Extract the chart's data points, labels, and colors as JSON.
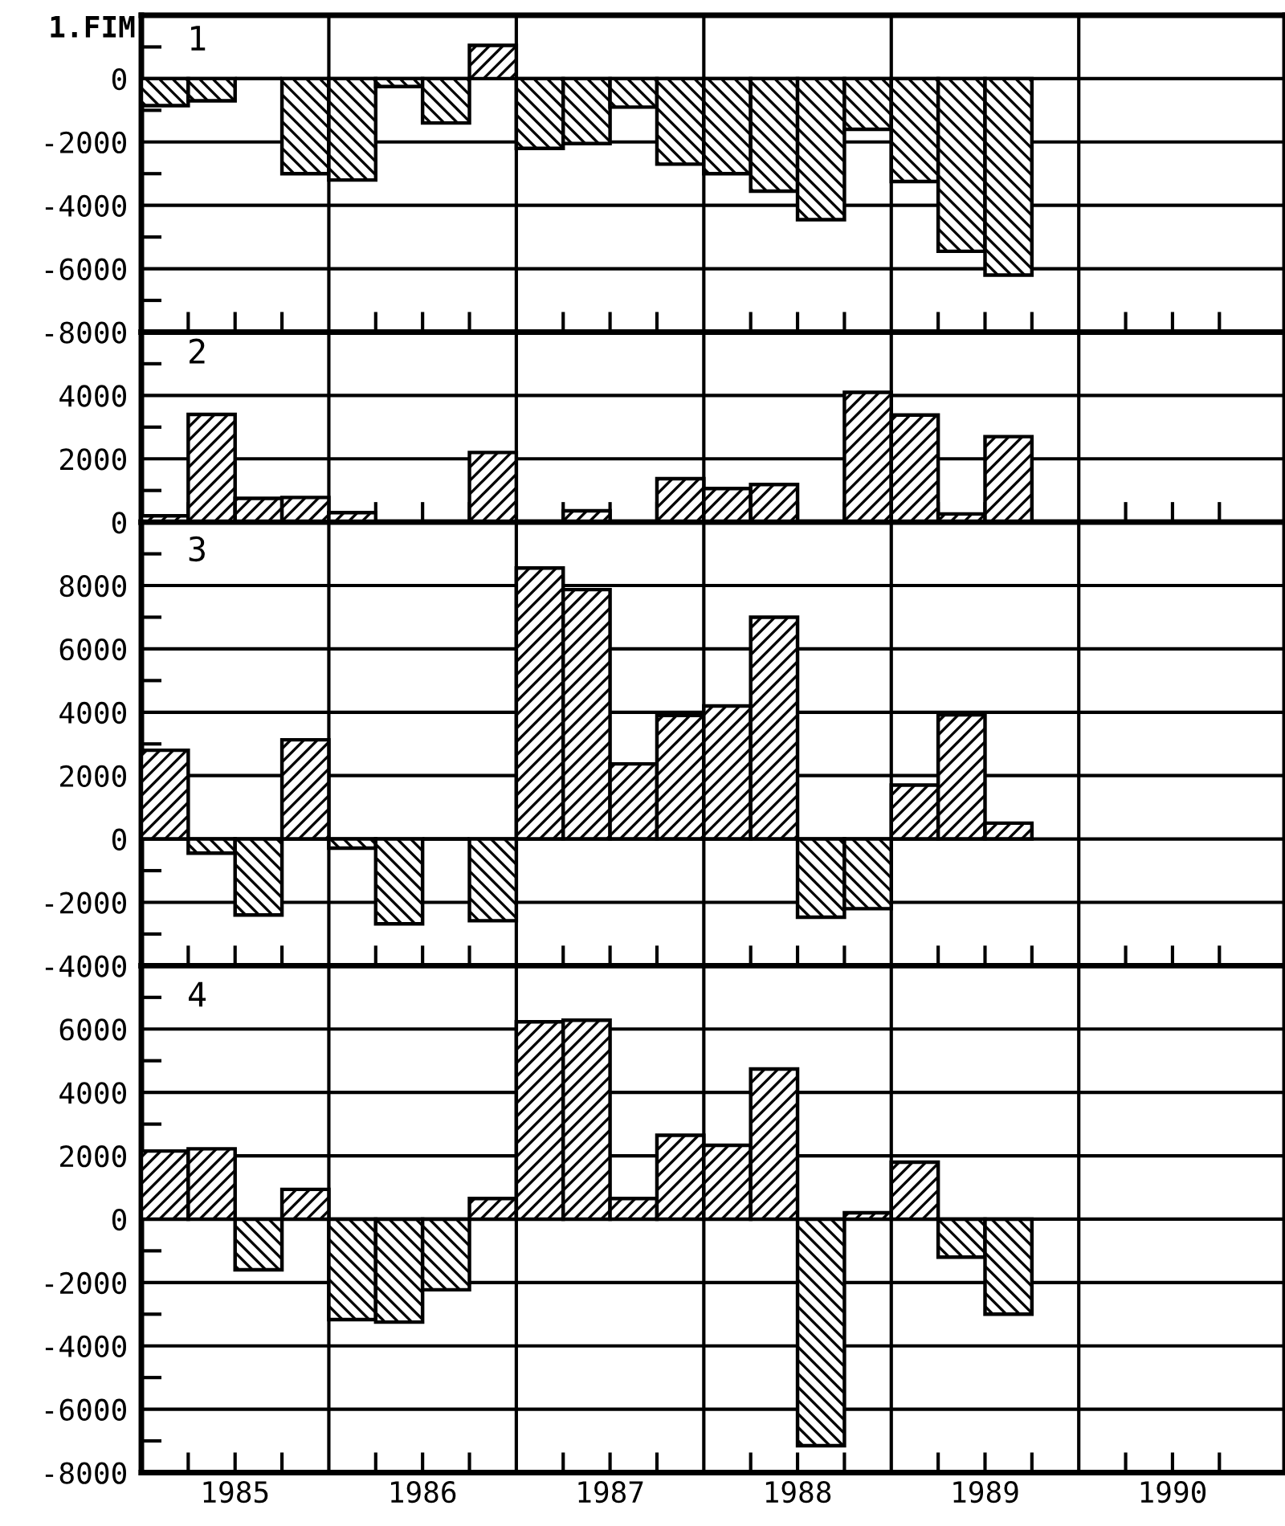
{
  "chart_data": [
    {
      "type": "bar",
      "title": "1.FIM",
      "annotations": [
        "1"
      ],
      "x": [
        1985.125,
        1985.375,
        1985.625,
        1985.875,
        1986.125,
        1986.375,
        1986.625,
        1986.875,
        1987.125,
        1987.375,
        1987.625,
        1987.875,
        1988.125,
        1988.375,
        1988.625,
        1988.875,
        1989.125,
        1989.375,
        1989.625
      ],
      "series": [
        {
          "color": "#000000",
          "values": [
            -850,
            -700,
            0,
            -3000,
            -3200,
            -250,
            -1400,
            1050,
            -2200,
            -2050,
            -900,
            -2700,
            -3000,
            -3550,
            -4450,
            -1600,
            -3250,
            -5450,
            -6200
          ]
        }
      ],
      "xlim": [
        1985,
        1991.1
      ],
      "ylim": [
        -8000,
        2000
      ],
      "xticks": [
        {
          "value": 1985.25,
          "label": null
        },
        {
          "value": 1985.5,
          "label": null
        },
        {
          "value": 1985.75,
          "label": null
        },
        {
          "value": 1986.25,
          "label": null
        },
        {
          "value": 1986.5,
          "label": null
        },
        {
          "value": 1986.75,
          "label": null
        },
        {
          "value": 1987.25,
          "label": null
        },
        {
          "value": 1987.5,
          "label": null
        },
        {
          "value": 1987.75,
          "label": null
        },
        {
          "value": 1988.25,
          "label": null
        },
        {
          "value": 1988.5,
          "label": null
        },
        {
          "value": 1988.75,
          "label": null
        },
        {
          "value": 1989.25,
          "label": null
        },
        {
          "value": 1989.5,
          "label": null
        },
        {
          "value": 1989.75,
          "label": null
        },
        {
          "value": 1990.25,
          "label": null
        },
        {
          "value": 1990.5,
          "label": null
        },
        {
          "value": 1990.75,
          "label": null
        }
      ],
      "yticks": [
        -8000,
        {
          "value": -7000,
          "label": null
        },
        -6000,
        {
          "value": -5000,
          "label": null
        },
        -4000,
        {
          "value": -3000,
          "label": null
        },
        -2000,
        {
          "value": -1000,
          "label": null
        },
        0,
        {
          "value": 1000,
          "label": null
        }
      ],
      "ref_lines": [
        {
          "axis": "x",
          "value": 1986
        },
        {
          "axis": "x",
          "value": 1987
        },
        {
          "axis": "x",
          "value": 1988
        },
        {
          "axis": "x",
          "value": 1989
        },
        {
          "axis": "x",
          "value": 1990
        }
      ],
      "grid": "y",
      "legend": false,
      "tick_labels": "y"
    },
    {
      "type": "bar",
      "annotations": [
        "2"
      ],
      "x": [
        1985.125,
        1985.375,
        1985.625,
        1985.875,
        1986.125,
        1986.375,
        1986.625,
        1986.875,
        1987.125,
        1987.375,
        1987.625,
        1987.875,
        1988.125,
        1988.375,
        1988.625,
        1988.875,
        1989.125,
        1989.375,
        1989.625
      ],
      "series": [
        {
          "color": "#000000",
          "values": [
            200,
            3400,
            750,
            780,
            300,
            0,
            0,
            2200,
            0,
            360,
            0,
            1370,
            1060,
            1190,
            0,
            4100,
            3380,
            260,
            2700
          ]
        }
      ],
      "xlim": [
        1985,
        1991.1
      ],
      "ylim": [
        0,
        6000
      ],
      "xticks": [
        {
          "value": 1985.25,
          "label": null
        },
        {
          "value": 1985.5,
          "label": null
        },
        {
          "value": 1985.75,
          "label": null
        },
        {
          "value": 1986.25,
          "label": null
        },
        {
          "value": 1986.5,
          "label": null
        },
        {
          "value": 1986.75,
          "label": null
        },
        {
          "value": 1987.25,
          "label": null
        },
        {
          "value": 1987.5,
          "label": null
        },
        {
          "value": 1987.75,
          "label": null
        },
        {
          "value": 1988.25,
          "label": null
        },
        {
          "value": 1988.5,
          "label": null
        },
        {
          "value": 1988.75,
          "label": null
        },
        {
          "value": 1989.25,
          "label": null
        },
        {
          "value": 1989.5,
          "label": null
        },
        {
          "value": 1989.75,
          "label": null
        },
        {
          "value": 1990.25,
          "label": null
        },
        {
          "value": 1990.5,
          "label": null
        },
        {
          "value": 1990.75,
          "label": null
        }
      ],
      "yticks": [
        0,
        {
          "value": 1000,
          "label": null
        },
        2000,
        {
          "value": 3000,
          "label": null
        },
        4000,
        {
          "value": 5000,
          "label": null
        }
      ],
      "ref_lines": [
        {
          "axis": "x",
          "value": 1986
        },
        {
          "axis": "x",
          "value": 1987
        },
        {
          "axis": "x",
          "value": 1988
        },
        {
          "axis": "x",
          "value": 1989
        },
        {
          "axis": "x",
          "value": 1990
        }
      ],
      "grid": "y",
      "legend": false,
      "tick_labels": "y"
    },
    {
      "type": "bar",
      "annotations": [
        "3"
      ],
      "x": [
        1985.125,
        1985.375,
        1985.625,
        1985.875,
        1986.125,
        1986.375,
        1986.625,
        1986.875,
        1987.125,
        1987.375,
        1987.625,
        1987.875,
        1988.125,
        1988.375,
        1988.625,
        1988.875,
        1989.125,
        1989.375,
        1989.625
      ],
      "series": [
        {
          "color": "#000000",
          "values": [
            2800,
            -450,
            -2400,
            3130,
            -290,
            -2680,
            0,
            -2580,
            8550,
            7870,
            2370,
            3900,
            4200,
            7000,
            -2470,
            -2200,
            1700,
            3920,
            500
          ]
        }
      ],
      "xlim": [
        1985,
        1991.1
      ],
      "ylim": [
        -4000,
        10000
      ],
      "xticks": [
        {
          "value": 1985.25,
          "label": null
        },
        {
          "value": 1985.5,
          "label": null
        },
        {
          "value": 1985.75,
          "label": null
        },
        {
          "value": 1986.25,
          "label": null
        },
        {
          "value": 1986.5,
          "label": null
        },
        {
          "value": 1986.75,
          "label": null
        },
        {
          "value": 1987.25,
          "label": null
        },
        {
          "value": 1987.5,
          "label": null
        },
        {
          "value": 1987.75,
          "label": null
        },
        {
          "value": 1988.25,
          "label": null
        },
        {
          "value": 1988.5,
          "label": null
        },
        {
          "value": 1988.75,
          "label": null
        },
        {
          "value": 1989.25,
          "label": null
        },
        {
          "value": 1989.5,
          "label": null
        },
        {
          "value": 1989.75,
          "label": null
        },
        {
          "value": 1990.25,
          "label": null
        },
        {
          "value": 1990.5,
          "label": null
        },
        {
          "value": 1990.75,
          "label": null
        }
      ],
      "yticks": [
        -4000,
        {
          "value": -3000,
          "label": null
        },
        -2000,
        {
          "value": -1000,
          "label": null
        },
        0,
        {
          "value": 1000,
          "label": null
        },
        2000,
        {
          "value": 3000,
          "label": null
        },
        4000,
        {
          "value": 5000,
          "label": null
        },
        6000,
        {
          "value": 7000,
          "label": null
        },
        8000,
        {
          "value": 9000,
          "label": null
        }
      ],
      "ref_lines": [
        {
          "axis": "x",
          "value": 1986
        },
        {
          "axis": "x",
          "value": 1987
        },
        {
          "axis": "x",
          "value": 1988
        },
        {
          "axis": "x",
          "value": 1989
        },
        {
          "axis": "x",
          "value": 1990
        }
      ],
      "grid": "y",
      "legend": false,
      "tick_labels": "y"
    },
    {
      "type": "bar",
      "annotations": [
        "4"
      ],
      "x": [
        1985.125,
        1985.375,
        1985.625,
        1985.875,
        1986.125,
        1986.375,
        1986.625,
        1986.875,
        1987.125,
        1987.375,
        1987.625,
        1987.875,
        1988.125,
        1988.375,
        1988.625,
        1988.875,
        1989.125,
        1989.375,
        1989.625
      ],
      "series": [
        {
          "color": "#000000",
          "values": [
            2150,
            2220,
            -1600,
            940,
            -3170,
            -3250,
            -2230,
            650,
            6230,
            6280,
            650,
            2650,
            2330,
            4740,
            -7150,
            200,
            1800,
            -1200,
            -3000
          ]
        }
      ],
      "xlim": [
        1985,
        1991.1
      ],
      "ylim": [
        -8000,
        8000
      ],
      "xticks": [
        {
          "value": 1985.25,
          "label": null
        },
        {
          "value": 1985.5,
          "label": "1985"
        },
        {
          "value": 1985.75,
          "label": null
        },
        {
          "value": 1986.25,
          "label": null
        },
        {
          "value": 1986.5,
          "label": "1986"
        },
        {
          "value": 1986.75,
          "label": null
        },
        {
          "value": 1987.25,
          "label": null
        },
        {
          "value": 1987.5,
          "label": "1987"
        },
        {
          "value": 1987.75,
          "label": null
        },
        {
          "value": 1988.25,
          "label": null
        },
        {
          "value": 1988.5,
          "label": "1988"
        },
        {
          "value": 1988.75,
          "label": null
        },
        {
          "value": 1989.25,
          "label": null
        },
        {
          "value": 1989.5,
          "label": "1989"
        },
        {
          "value": 1989.75,
          "label": null
        },
        {
          "value": 1990.25,
          "label": null
        },
        {
          "value": 1990.5,
          "label": "1990"
        },
        {
          "value": 1990.75,
          "label": null
        }
      ],
      "yticks": [
        -8000,
        {
          "value": -7000,
          "label": null
        },
        -6000,
        {
          "value": -5000,
          "label": null
        },
        -4000,
        {
          "value": -3000,
          "label": null
        },
        -2000,
        {
          "value": -1000,
          "label": null
        },
        0,
        {
          "value": 1000,
          "label": null
        },
        2000,
        {
          "value": 3000,
          "label": null
        },
        4000,
        {
          "value": 5000,
          "label": null
        },
        6000,
        {
          "value": 7000,
          "label": null
        }
      ],
      "ref_lines": [
        {
          "axis": "x",
          "value": 1986
        },
        {
          "axis": "x",
          "value": 1987
        },
        {
          "axis": "x",
          "value": 1988
        },
        {
          "axis": "x",
          "value": 1989
        },
        {
          "axis": "x",
          "value": 1990
        }
      ],
      "grid": "y",
      "legend": false
    }
  ]
}
